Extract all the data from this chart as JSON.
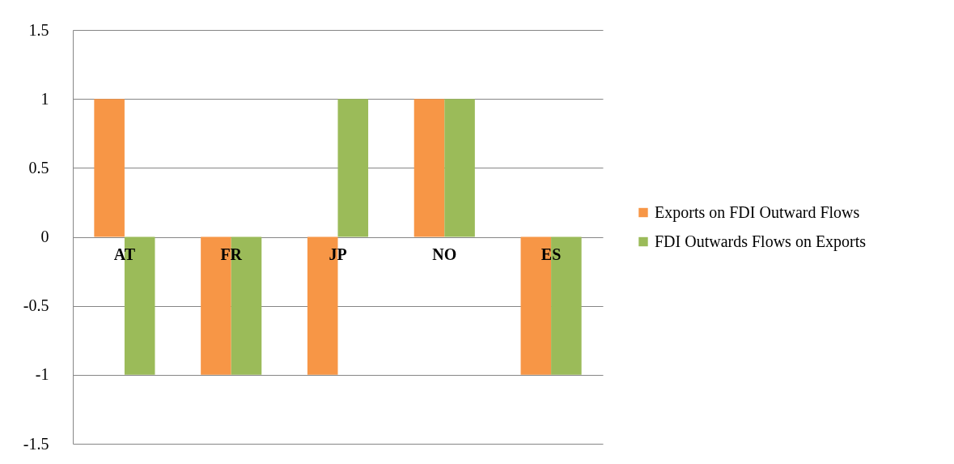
{
  "chart_data": {
    "type": "bar",
    "categories": [
      "AT",
      "FR",
      "JP",
      "NO",
      "ES"
    ],
    "series": [
      {
        "name": "Exports on FDI Outward Flows",
        "color": "#f79646",
        "values": [
          1,
          -1,
          -1,
          1,
          -1
        ]
      },
      {
        "name": "FDI Outwards Flows on Exports",
        "color": "#9bbb59",
        "values": [
          -1,
          -1,
          1,
          1,
          -1
        ]
      }
    ],
    "ylim": [
      -1.5,
      1.5
    ],
    "yticks": [
      -1.5,
      -1,
      -0.5,
      0,
      0.5,
      1,
      1.5
    ],
    "grid": "y",
    "legend": "right"
  }
}
